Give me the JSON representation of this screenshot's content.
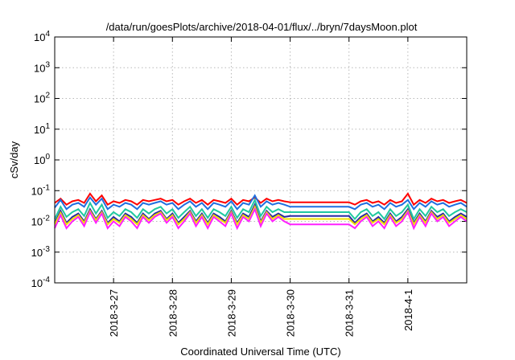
{
  "chart_data": {
    "type": "line",
    "title": "/data/run/goesPlots/archive/2018-04-01/flux/../bryn/7daysMoon.plot",
    "xlabel": "Coordinated Universal Time (UTC)",
    "ylabel": "cSv/day",
    "yscale": "log",
    "ylim": [
      0.0001,
      10000
    ],
    "xlim": [
      0,
      7
    ],
    "grid": true,
    "yticks": [
      {
        "base": "10",
        "exp": "-4"
      },
      {
        "base": "10",
        "exp": "-3"
      },
      {
        "base": "10",
        "exp": "-2"
      },
      {
        "base": "10",
        "exp": "-1"
      },
      {
        "base": "10",
        "exp": "0"
      },
      {
        "base": "10",
        "exp": "1"
      },
      {
        "base": "10",
        "exp": "2"
      },
      {
        "base": "10",
        "exp": "3"
      },
      {
        "base": "10",
        "exp": "4"
      }
    ],
    "xticks": [
      {
        "x": 1,
        "label": "2018-3-27"
      },
      {
        "x": 2,
        "label": "2018-3-28"
      },
      {
        "x": 3,
        "label": "2018-3-29"
      },
      {
        "x": 4,
        "label": "2018-3-30"
      },
      {
        "x": 5,
        "label": "2018-3-31"
      },
      {
        "x": 6,
        "label": "2018-4-1"
      }
    ],
    "series": [
      {
        "color": "#ff0000",
        "x": [
          0,
          0.1,
          0.2,
          0.3,
          0.4,
          0.5,
          0.6,
          0.7,
          0.8,
          0.9,
          1.0,
          1.1,
          1.2,
          1.3,
          1.4,
          1.5,
          1.6,
          1.7,
          1.8,
          1.9,
          2.0,
          2.1,
          2.2,
          2.3,
          2.4,
          2.5,
          2.6,
          2.7,
          2.8,
          2.9,
          3.0,
          3.1,
          3.2,
          3.3,
          3.4,
          3.5,
          3.6,
          3.7,
          3.8,
          3.9,
          4.0,
          4.5,
          5.0,
          5.1,
          5.2,
          5.3,
          5.4,
          5.5,
          5.6,
          5.7,
          5.8,
          5.9,
          6.0,
          6.1,
          6.2,
          6.3,
          6.4,
          6.5,
          6.6,
          6.7,
          6.8,
          6.9,
          7.0
        ],
        "values": [
          0.04,
          0.055,
          0.035,
          0.045,
          0.05,
          0.04,
          0.08,
          0.045,
          0.07,
          0.035,
          0.045,
          0.04,
          0.05,
          0.045,
          0.035,
          0.05,
          0.045,
          0.05,
          0.055,
          0.045,
          0.05,
          0.035,
          0.045,
          0.055,
          0.04,
          0.05,
          0.035,
          0.05,
          0.045,
          0.04,
          0.055,
          0.035,
          0.05,
          0.045,
          0.06,
          0.04,
          0.055,
          0.045,
          0.05,
          0.045,
          0.042,
          0.042,
          0.042,
          0.035,
          0.045,
          0.05,
          0.04,
          0.045,
          0.035,
          0.05,
          0.04,
          0.045,
          0.08,
          0.035,
          0.05,
          0.04,
          0.055,
          0.045,
          0.05,
          0.04,
          0.045,
          0.05,
          0.04
        ]
      },
      {
        "color": "#1f6fe0",
        "x": [
          0,
          0.1,
          0.2,
          0.3,
          0.4,
          0.5,
          0.6,
          0.7,
          0.8,
          0.9,
          1.0,
          1.1,
          1.2,
          1.3,
          1.4,
          1.5,
          1.6,
          1.7,
          1.8,
          1.9,
          2.0,
          2.1,
          2.2,
          2.3,
          2.4,
          2.5,
          2.6,
          2.7,
          2.8,
          2.9,
          3.0,
          3.1,
          3.2,
          3.3,
          3.4,
          3.5,
          3.6,
          3.7,
          3.8,
          3.9,
          4.0,
          4.5,
          5.0,
          5.1,
          5.2,
          5.3,
          5.4,
          5.5,
          5.6,
          5.7,
          5.8,
          5.9,
          6.0,
          6.1,
          6.2,
          6.3,
          6.4,
          6.5,
          6.6,
          6.7,
          6.8,
          6.9,
          7.0
        ],
        "values": [
          0.028,
          0.05,
          0.025,
          0.035,
          0.04,
          0.03,
          0.06,
          0.035,
          0.055,
          0.025,
          0.035,
          0.03,
          0.04,
          0.035,
          0.025,
          0.04,
          0.035,
          0.04,
          0.045,
          0.035,
          0.04,
          0.025,
          0.035,
          0.045,
          0.03,
          0.04,
          0.025,
          0.04,
          0.035,
          0.03,
          0.045,
          0.025,
          0.04,
          0.035,
          0.07,
          0.03,
          0.045,
          0.035,
          0.04,
          0.035,
          0.03,
          0.03,
          0.03,
          0.025,
          0.035,
          0.04,
          0.03,
          0.035,
          0.025,
          0.04,
          0.03,
          0.035,
          0.05,
          0.025,
          0.04,
          0.03,
          0.045,
          0.035,
          0.04,
          0.03,
          0.035,
          0.04,
          0.03
        ]
      },
      {
        "color": "#20c8a0",
        "x": [
          0,
          0.1,
          0.2,
          0.3,
          0.4,
          0.5,
          0.6,
          0.7,
          0.8,
          0.9,
          1.0,
          1.1,
          1.2,
          1.3,
          1.4,
          1.5,
          1.6,
          1.7,
          1.8,
          1.9,
          2.0,
          2.1,
          2.2,
          2.3,
          2.4,
          2.5,
          2.6,
          2.7,
          2.8,
          2.9,
          3.0,
          3.1,
          3.2,
          3.3,
          3.4,
          3.5,
          3.6,
          3.7,
          3.8,
          3.9,
          4.0,
          4.5,
          5.0,
          5.1,
          5.2,
          5.3,
          5.4,
          5.5,
          5.6,
          5.7,
          5.8,
          5.9,
          6.0,
          6.1,
          6.2,
          6.3,
          6.4,
          6.5,
          6.6,
          6.7,
          6.8,
          6.9,
          7.0
        ],
        "values": [
          0.012,
          0.03,
          0.014,
          0.02,
          0.025,
          0.015,
          0.04,
          0.018,
          0.035,
          0.013,
          0.02,
          0.015,
          0.025,
          0.02,
          0.013,
          0.025,
          0.018,
          0.025,
          0.03,
          0.018,
          0.025,
          0.013,
          0.02,
          0.03,
          0.015,
          0.025,
          0.013,
          0.025,
          0.02,
          0.015,
          0.03,
          0.013,
          0.025,
          0.02,
          0.05,
          0.015,
          0.03,
          0.02,
          0.025,
          0.02,
          0.02,
          0.02,
          0.02,
          0.012,
          0.02,
          0.025,
          0.015,
          0.02,
          0.012,
          0.025,
          0.015,
          0.02,
          0.035,
          0.012,
          0.025,
          0.015,
          0.03,
          0.02,
          0.025,
          0.015,
          0.02,
          0.025,
          0.02
        ]
      },
      {
        "color": "#2a2aa0",
        "x": [
          0,
          0.1,
          0.2,
          0.3,
          0.4,
          0.5,
          0.6,
          0.7,
          0.8,
          0.9,
          1.0,
          1.1,
          1.2,
          1.3,
          1.4,
          1.5,
          1.6,
          1.7,
          1.8,
          1.9,
          2.0,
          2.1,
          2.2,
          2.3,
          2.4,
          2.5,
          2.6,
          2.7,
          2.8,
          2.9,
          3.0,
          3.1,
          3.2,
          3.3,
          3.4,
          3.5,
          3.6,
          3.7,
          3.8,
          3.9,
          4.0,
          4.5,
          5.0,
          5.1,
          5.2,
          5.3,
          5.4,
          5.5,
          5.6,
          5.7,
          5.8,
          5.9,
          6.0,
          6.1,
          6.2,
          6.3,
          6.4,
          6.5,
          6.6,
          6.7,
          6.8,
          6.9,
          7.0
        ],
        "values": [
          0.009,
          0.022,
          0.009,
          0.014,
          0.018,
          0.01,
          0.025,
          0.012,
          0.022,
          0.009,
          0.014,
          0.01,
          0.018,
          0.014,
          0.009,
          0.018,
          0.012,
          0.018,
          0.022,
          0.012,
          0.018,
          0.009,
          0.014,
          0.022,
          0.01,
          0.018,
          0.009,
          0.018,
          0.014,
          0.01,
          0.022,
          0.009,
          0.018,
          0.014,
          0.035,
          0.01,
          0.022,
          0.014,
          0.018,
          0.014,
          0.015,
          0.015,
          0.015,
          0.009,
          0.014,
          0.018,
          0.01,
          0.014,
          0.009,
          0.018,
          0.01,
          0.014,
          0.025,
          0.009,
          0.018,
          0.01,
          0.022,
          0.014,
          0.018,
          0.01,
          0.014,
          0.018,
          0.014
        ]
      },
      {
        "color": "#f0e000",
        "x": [
          0,
          0.1,
          0.2,
          0.3,
          0.4,
          0.5,
          0.6,
          0.7,
          0.8,
          0.9,
          1.0,
          1.1,
          1.2,
          1.3,
          1.4,
          1.5,
          1.6,
          1.7,
          1.8,
          1.9,
          2.0,
          2.1,
          2.2,
          2.3,
          2.4,
          2.5,
          2.6,
          2.7,
          2.8,
          2.9,
          3.0,
          3.1,
          3.2,
          3.3,
          3.4,
          3.5,
          3.6,
          3.7,
          3.8,
          3.9,
          4.0,
          4.5,
          5.0,
          5.1,
          5.2,
          5.3,
          5.4,
          5.5,
          5.6,
          5.7,
          5.8,
          5.9,
          6.0,
          6.1,
          6.2,
          6.3,
          6.4,
          6.5,
          6.6,
          6.7,
          6.8,
          6.9,
          7.0
        ],
        "values": [
          0.008,
          0.019,
          0.008,
          0.012,
          0.016,
          0.009,
          0.022,
          0.011,
          0.02,
          0.008,
          0.012,
          0.009,
          0.016,
          0.012,
          0.008,
          0.016,
          0.011,
          0.016,
          0.02,
          0.011,
          0.016,
          0.008,
          0.012,
          0.02,
          0.009,
          0.016,
          0.008,
          0.016,
          0.012,
          0.009,
          0.02,
          0.008,
          0.016,
          0.012,
          0.03,
          0.009,
          0.02,
          0.012,
          0.016,
          0.012,
          0.012,
          0.012,
          0.012,
          0.008,
          0.012,
          0.016,
          0.009,
          0.012,
          0.008,
          0.016,
          0.009,
          0.012,
          0.022,
          0.008,
          0.016,
          0.009,
          0.02,
          0.012,
          0.016,
          0.009,
          0.012,
          0.016,
          0.012
        ]
      },
      {
        "color": "#ff20ff",
        "x": [
          0,
          0.1,
          0.2,
          0.3,
          0.4,
          0.5,
          0.6,
          0.7,
          0.8,
          0.9,
          1.0,
          1.1,
          1.2,
          1.3,
          1.4,
          1.5,
          1.6,
          1.7,
          1.8,
          1.9,
          2.0,
          2.1,
          2.2,
          2.3,
          2.4,
          2.5,
          2.6,
          2.7,
          2.8,
          2.9,
          3.0,
          3.1,
          3.2,
          3.3,
          3.4,
          3.5,
          3.6,
          3.7,
          3.8,
          3.9,
          4.0,
          4.5,
          5.0,
          5.1,
          5.2,
          5.3,
          5.4,
          5.5,
          5.6,
          5.7,
          5.8,
          5.9,
          6.0,
          6.1,
          6.2,
          6.3,
          6.4,
          6.5,
          6.6,
          6.7,
          6.8,
          6.9,
          7.0
        ],
        "values": [
          0.006,
          0.016,
          0.006,
          0.01,
          0.014,
          0.007,
          0.02,
          0.009,
          0.018,
          0.006,
          0.01,
          0.007,
          0.014,
          0.01,
          0.006,
          0.014,
          0.009,
          0.014,
          0.018,
          0.009,
          0.014,
          0.006,
          0.01,
          0.018,
          0.007,
          0.014,
          0.006,
          0.014,
          0.01,
          0.007,
          0.018,
          0.006,
          0.014,
          0.01,
          0.025,
          0.007,
          0.018,
          0.01,
          0.014,
          0.01,
          0.008,
          0.008,
          0.008,
          0.006,
          0.01,
          0.014,
          0.007,
          0.01,
          0.006,
          0.014,
          0.007,
          0.01,
          0.02,
          0.006,
          0.014,
          0.007,
          0.018,
          0.01,
          0.014,
          0.007,
          0.01,
          0.014,
          0.01
        ]
      }
    ]
  }
}
